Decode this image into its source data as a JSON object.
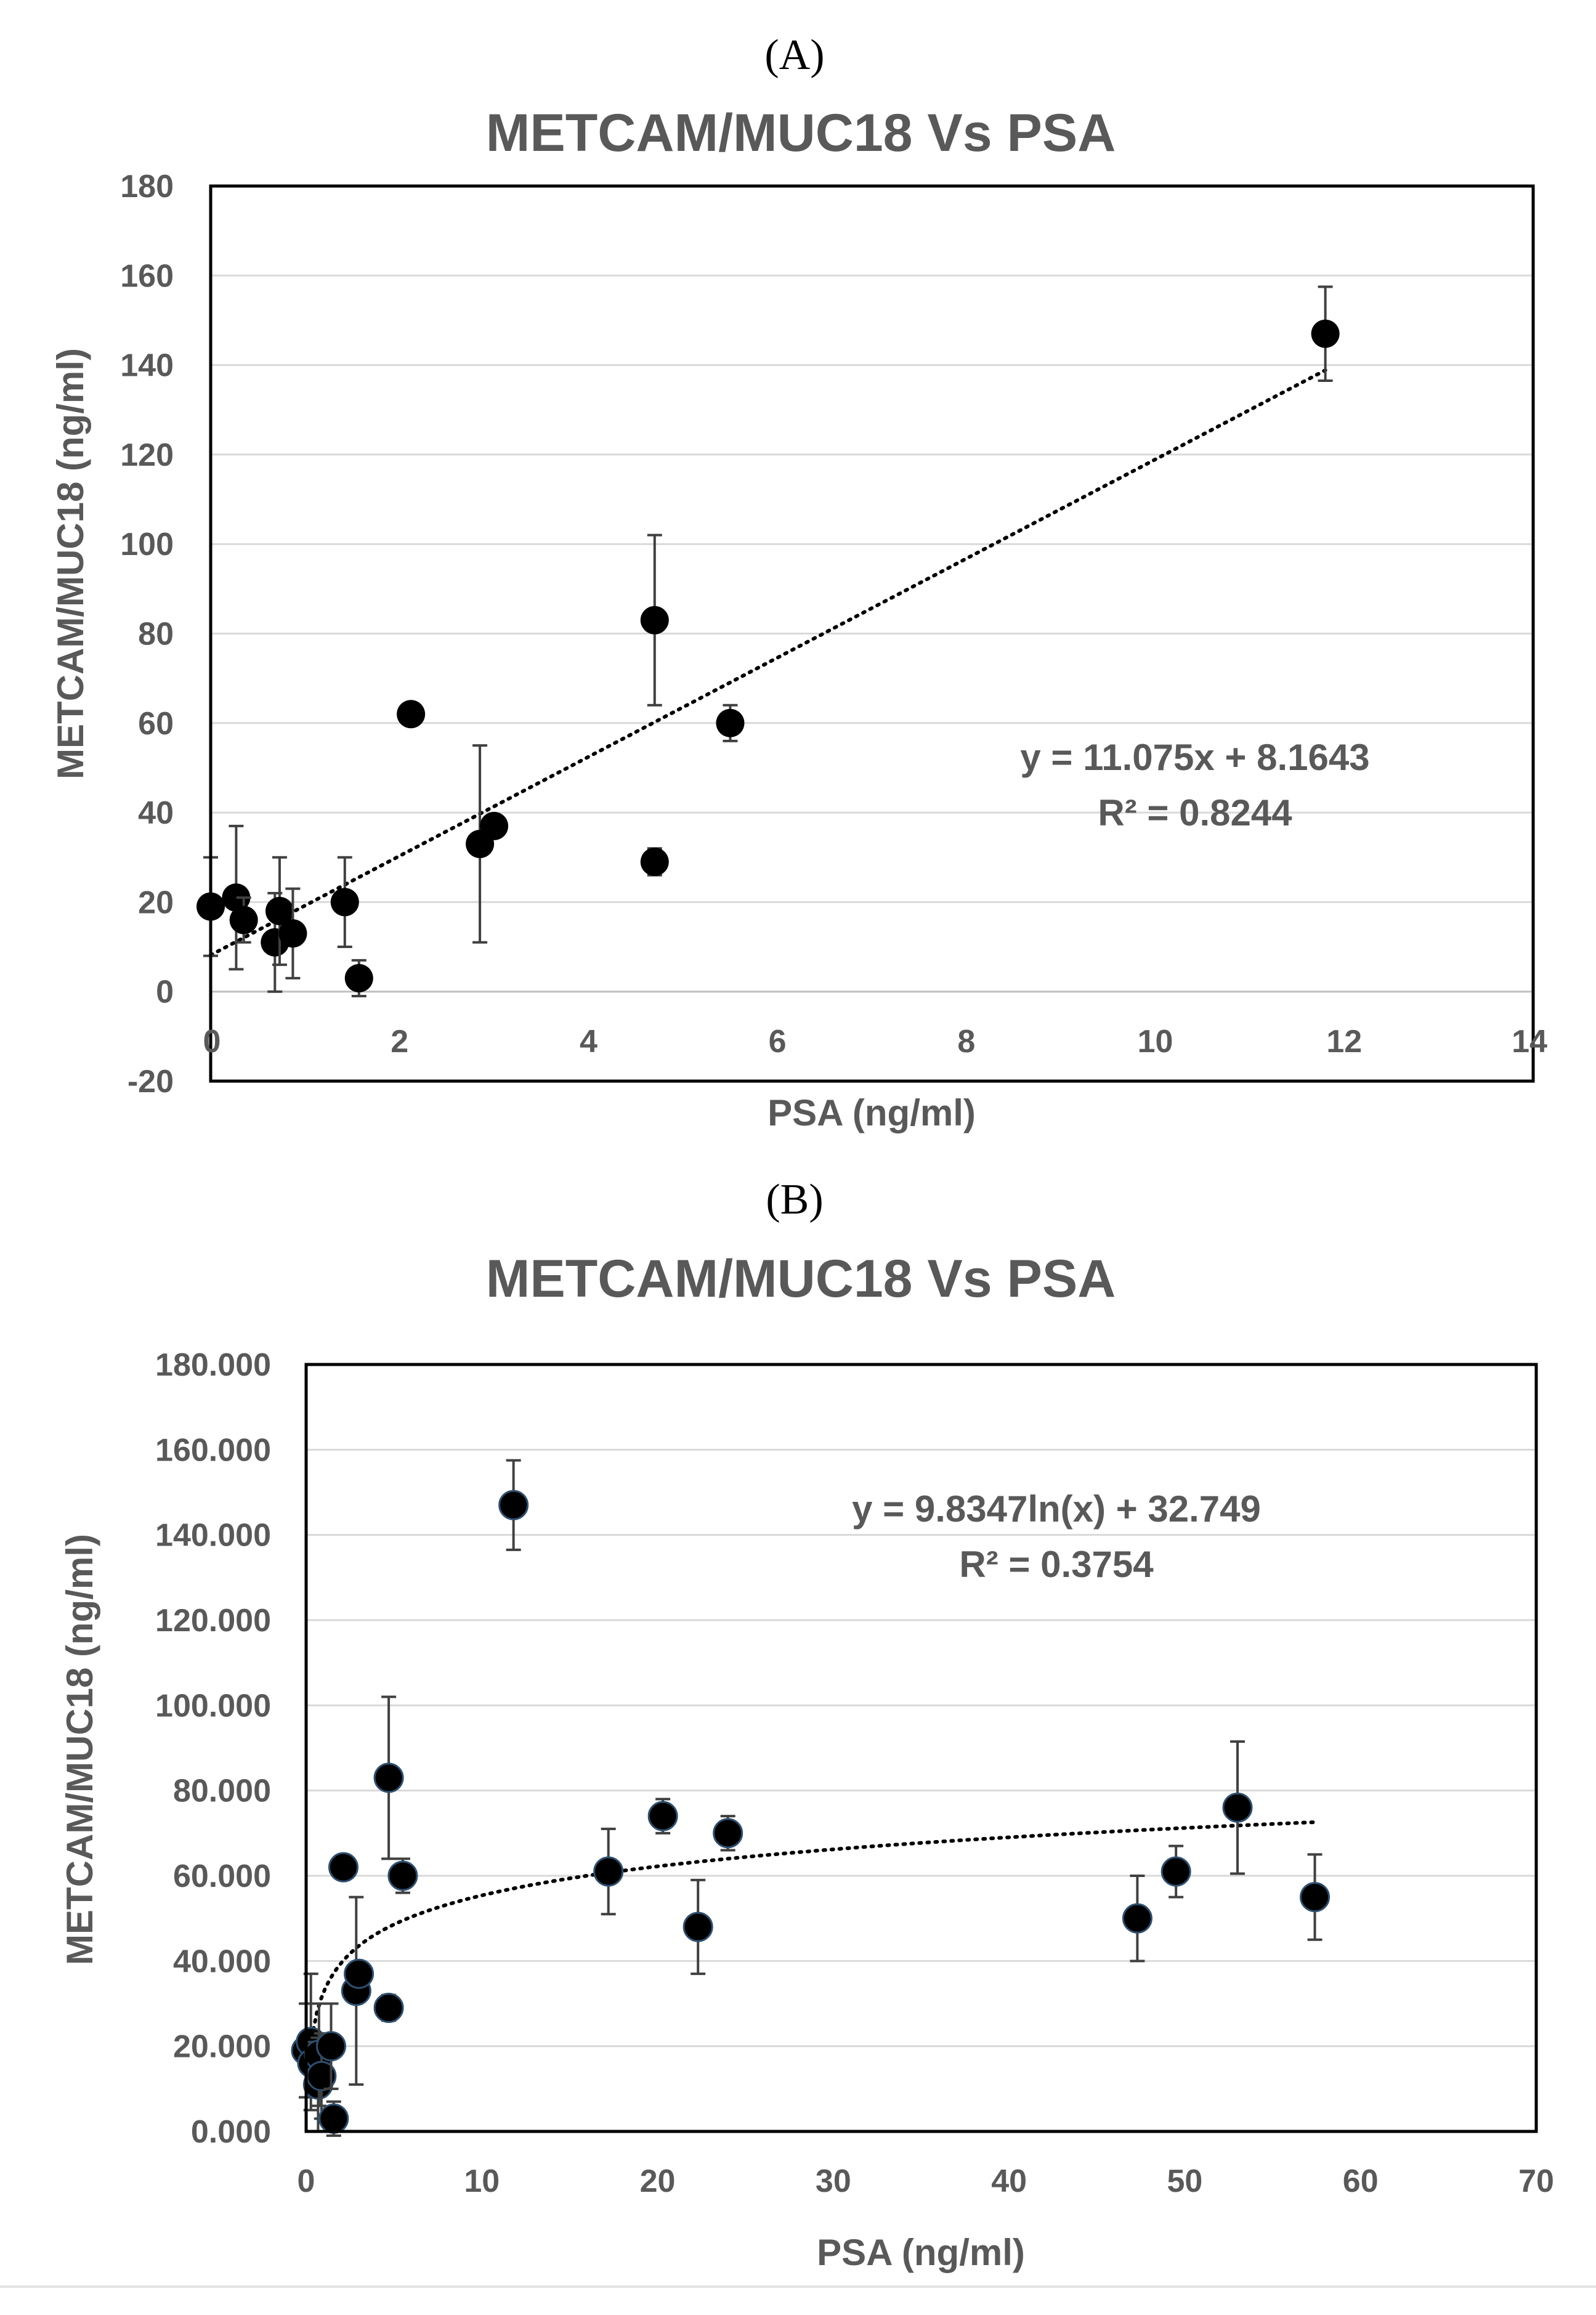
{
  "chart_data": [
    {
      "panel": "(A)",
      "type": "scatter",
      "title": "METCAM/MUC18 Vs PSA",
      "xlabel": "PSA (ng/ml)",
      "ylabel": "METCAM/MUC18 (ng/ml)",
      "xlim": [
        0,
        14
      ],
      "ylim": [
        -20,
        180
      ],
      "xticks": [
        0,
        2,
        4,
        6,
        8,
        10,
        12,
        14
      ],
      "yticks": [
        -20,
        0,
        20,
        40,
        60,
        80,
        100,
        120,
        140,
        160,
        180
      ],
      "xtick_labels": [
        "0",
        "2",
        "4",
        "6",
        "8",
        "10",
        "12",
        "14"
      ],
      "ytick_labels": [
        "-20",
        "0",
        "20",
        "40",
        "60",
        "80",
        "100",
        "120",
        "140",
        "160",
        "180"
      ],
      "grid": true,
      "trendline": {
        "kind": "linear",
        "a": 11.075,
        "b": 8.1643,
        "x_range": [
          0,
          11.8
        ]
      },
      "equation": "y = 11.075x + 8.1643",
      "r2": "R² = 0.8244",
      "points": [
        {
          "x": 0.0,
          "y": 19,
          "err": 11
        },
        {
          "x": 0.27,
          "y": 21,
          "err": 16
        },
        {
          "x": 0.35,
          "y": 16,
          "err": 5
        },
        {
          "x": 0.68,
          "y": 11,
          "err": 11
        },
        {
          "x": 0.73,
          "y": 18,
          "err": 12
        },
        {
          "x": 0.87,
          "y": 13,
          "err": 10
        },
        {
          "x": 1.42,
          "y": 20,
          "err": 10
        },
        {
          "x": 1.57,
          "y": 3,
          "err": 4
        },
        {
          "x": 2.12,
          "y": 62,
          "err": 0
        },
        {
          "x": 2.85,
          "y": 33,
          "err": 22
        },
        {
          "x": 3.0,
          "y": 37,
          "err": 0
        },
        {
          "x": 4.7,
          "y": 83,
          "err": 19
        },
        {
          "x": 4.7,
          "y": 29,
          "err": 3
        },
        {
          "x": 5.5,
          "y": 60,
          "err": 4
        },
        {
          "x": 11.8,
          "y": 147,
          "err": 10.5
        }
      ]
    },
    {
      "panel": "(B)",
      "type": "scatter",
      "title": "METCAM/MUC18 Vs PSA",
      "xlabel": "PSA (ng/ml)",
      "ylabel": "METCAM/MUC18  (ng/ml)",
      "xlim": [
        0,
        70
      ],
      "ylim": [
        0,
        180
      ],
      "xticks": [
        0,
        10,
        20,
        30,
        40,
        50,
        60,
        70
      ],
      "yticks": [
        0,
        20,
        40,
        60,
        80,
        100,
        120,
        140,
        160,
        180
      ],
      "xtick_labels": [
        "0",
        "10",
        "20",
        "30",
        "40",
        "50",
        "60",
        "70"
      ],
      "ytick_labels": [
        "0.000",
        "20.000",
        "40.000",
        "60.000",
        "80.000",
        "100.000",
        "120.000",
        "140.000",
        "160.000",
        "180.000"
      ],
      "grid": true,
      "trendline": {
        "kind": "log",
        "a": 9.8347,
        "b": 32.749,
        "x_range": [
          0.13,
          57.4
        ]
      },
      "equation": "y = 9.8347ln(x) + 32.749",
      "r2": "R² = 0.3754",
      "points": [
        {
          "x": 0.0,
          "y": 19,
          "err": 11
        },
        {
          "x": 0.27,
          "y": 21,
          "err": 16
        },
        {
          "x": 0.35,
          "y": 16,
          "err": 5
        },
        {
          "x": 0.68,
          "y": 11,
          "err": 11
        },
        {
          "x": 0.73,
          "y": 18,
          "err": 12
        },
        {
          "x": 0.87,
          "y": 13,
          "err": 10
        },
        {
          "x": 1.42,
          "y": 20,
          "err": 10
        },
        {
          "x": 1.57,
          "y": 3,
          "err": 4
        },
        {
          "x": 2.12,
          "y": 62,
          "err": 0
        },
        {
          "x": 2.85,
          "y": 33,
          "err": 22
        },
        {
          "x": 3.0,
          "y": 37,
          "err": 0
        },
        {
          "x": 4.7,
          "y": 83,
          "err": 19
        },
        {
          "x": 4.7,
          "y": 29,
          "err": 3
        },
        {
          "x": 5.5,
          "y": 60,
          "err": 4
        },
        {
          "x": 11.8,
          "y": 147,
          "err": 10.5
        },
        {
          "x": 17.2,
          "y": 61,
          "err": 10
        },
        {
          "x": 20.3,
          "y": 74,
          "err": 4
        },
        {
          "x": 22.3,
          "y": 48,
          "err": 11
        },
        {
          "x": 24.0,
          "y": 70,
          "err": 4
        },
        {
          "x": 47.3,
          "y": 50,
          "err": 10
        },
        {
          "x": 49.5,
          "y": 61,
          "err": 6
        },
        {
          "x": 53.0,
          "y": 76,
          "err": 15.5
        },
        {
          "x": 57.4,
          "y": 55,
          "err": 10
        }
      ]
    }
  ]
}
